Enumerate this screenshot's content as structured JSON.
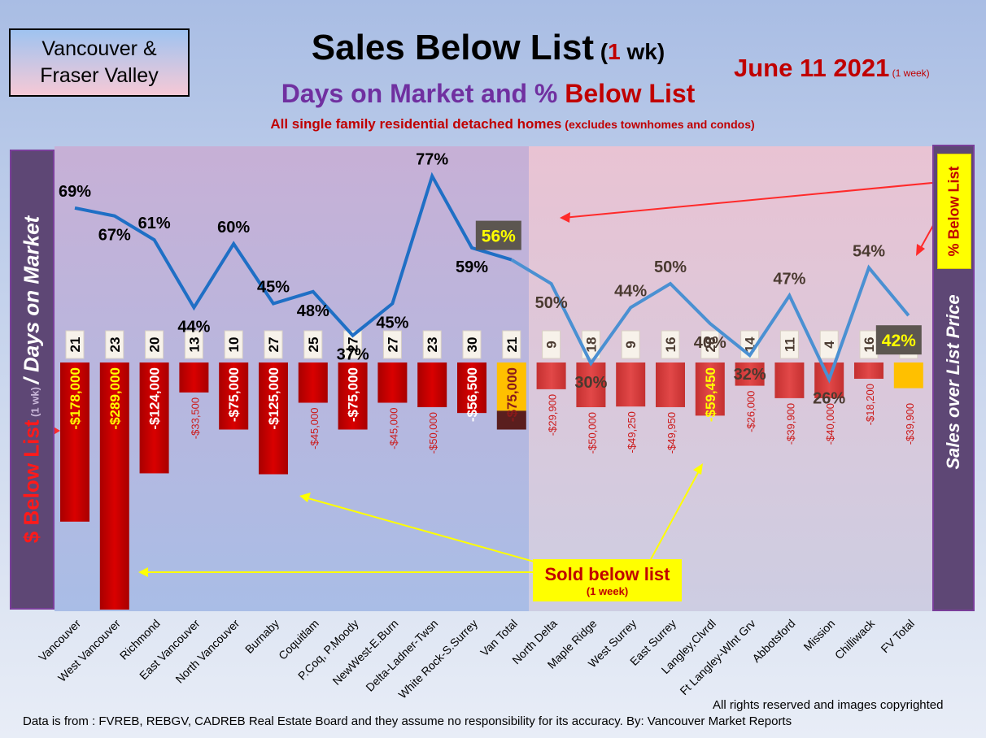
{
  "header": {
    "region_box": "Vancouver &\nFraser Valley",
    "title_main": "Sales Below List",
    "title_paren_open": " (",
    "title_paren_num": "1",
    "title_paren_rest": " wk)",
    "subtitle_part1": "Days on Market and % ",
    "subtitle_part2": "Below List",
    "subtitle2_main": "All single family residential detached homes",
    "subtitle2_paren": " (excludes townhomes and condos)",
    "date_main": "June 11  2021",
    "date_small": " (1 week)"
  },
  "left_axis": {
    "part1": "$ Below List",
    "part2": " (1 wk) ",
    "part3": "/ Days on Market"
  },
  "right_axis": {
    "label": "Sales over List Price",
    "pct_box_label": "% Below List"
  },
  "annotation": {
    "sold_below_list": "Sold below list",
    "sold_sub": "(1 week)"
  },
  "footer": {
    "copyright": "All rights reserved and  images copyrighted",
    "source": "Data is from : FVREB, REBGV, CADREB Real Estate Board and they assume no responsibility for its accuracy. By: Vancouver Market Reports"
  },
  "colors": {
    "bar_red": "#cc0000",
    "bar_red_light": "#d83b3b",
    "total_bar_orange": "#ffc000",
    "total_bar_dark": "#5a1e1e",
    "line_blue": "#1f6fc5",
    "line_blue_light": "#4a90d2",
    "label_yellow": "#ffff00"
  },
  "chart_data": {
    "type": "bar",
    "categories": [
      "Vancouver",
      "West Vancouver",
      "Richmond",
      "East Vancouver",
      "North Vancouver",
      "Burnaby",
      "Coquitlam",
      "P.Coq, P.Moody",
      "NewWest-E.Burn",
      "Delta-Ladner-Twsn",
      "White Rock-S.Surrey",
      "Van Total",
      "North Delta",
      "Maple Ridge",
      "West Surrey",
      "East Surrey",
      "Langley,Clvrdl",
      "Ft Langley-Wlnt Grv",
      "Abbotsford",
      "Mission",
      "Chilliwack",
      "FV Total"
    ],
    "series": [
      {
        "values": [
          -178000,
          -289000,
          -124000,
          -33500,
          -75000,
          -125000,
          -45000,
          -75000,
          -45000,
          -50000,
          -56500,
          -75000,
          -29900,
          -50000,
          -49250,
          -49950,
          -59450,
          -26000,
          -39900,
          -40000,
          -18200,
          -39900
        ]
      },
      {
        "values": [
          21,
          23,
          20,
          13,
          10,
          27,
          25,
          27,
          27,
          23,
          30,
          21,
          9,
          18,
          9,
          16,
          28,
          14,
          11,
          4,
          16,
          16
        ]
      },
      {
        "values": [
          69,
          67,
          61,
          44,
          60,
          45,
          48,
          37,
          45,
          77,
          59,
          56,
          50,
          30,
          44,
          50,
          40,
          32,
          47,
          26,
          54,
          42
        ]
      }
    ],
    "bar_labels": [
      "-$178,000",
      "-$289,000",
      "-$124,000",
      "-$33,500",
      "-$75,000",
      "-$125,000",
      "-$45,000",
      "-$75,000",
      "-$45,000",
      "-$50,000",
      "-$56,500",
      "-$75,000",
      "-$29,900",
      "-$50,000",
      "-$49,250",
      "-$49,950",
      "-$59,450",
      "-$26,000",
      "-$39,900",
      "-$40,000",
      "-$18,200",
      "-$39,900"
    ],
    "pct_labels": [
      "69%",
      "67%",
      "61%",
      "44%",
      "60%",
      "45%",
      "48%",
      "37%",
      "45%",
      "77%",
      "59%",
      "56%",
      "50%",
      "30%",
      "44%",
      "50%",
      "40%",
      "32%",
      "47%",
      "26%",
      "54%",
      "42%"
    ],
    "dom_labels": [
      "21",
      "23",
      "20",
      "13",
      "10",
      "27",
      "25",
      "27",
      "27",
      "23",
      "30",
      "21",
      "9",
      "18",
      "9",
      "16",
      "28",
      "14",
      "11",
      "4",
      "16",
      "16"
    ]
  }
}
